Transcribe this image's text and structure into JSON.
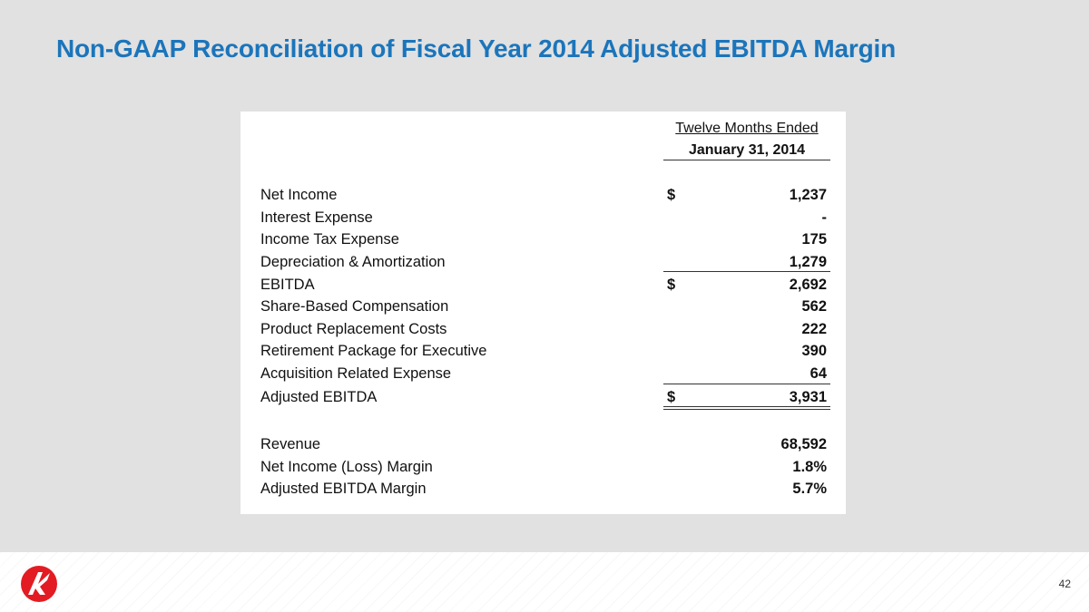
{
  "slide": {
    "title": "Non-GAAP Reconciliation of Fiscal Year 2014 Adjusted EBITDA Margin",
    "page_number": "42"
  },
  "table": {
    "header_line1": "Twelve Months Ended",
    "header_line2": "January 31, 2014",
    "rows": [
      {
        "label": "Net Income",
        "currency": "$",
        "value": "1,237"
      },
      {
        "label": "Interest Expense",
        "currency": "",
        "value": "-"
      },
      {
        "label": "Income Tax Expense",
        "currency": "",
        "value": "175"
      },
      {
        "label": "Depreciation & Amortization",
        "currency": "",
        "value": "1,279"
      },
      {
        "label": "EBITDA",
        "currency": "$",
        "value": "2,692"
      },
      {
        "label": "Share-Based Compensation",
        "currency": "",
        "value": "562"
      },
      {
        "label": "Product Replacement Costs",
        "currency": "",
        "value": "222"
      },
      {
        "label": "Retirement Package for Executive",
        "currency": "",
        "value": "390"
      },
      {
        "label": "Acquisition Related Expense",
        "currency": "",
        "value": "64"
      },
      {
        "label": "Adjusted EBITDA",
        "currency": "$",
        "value": "3,931"
      },
      {
        "label": "Revenue",
        "currency": "",
        "value": "68,592"
      },
      {
        "label": "Net Income (Loss) Margin",
        "currency": "",
        "value": "1.8%"
      },
      {
        "label": "Adjusted EBITDA Margin",
        "currency": "",
        "value": "5.7%"
      }
    ]
  },
  "colors": {
    "title": "#1b75bb",
    "logo": "#e31b23",
    "background": "#e1e1e1"
  }
}
